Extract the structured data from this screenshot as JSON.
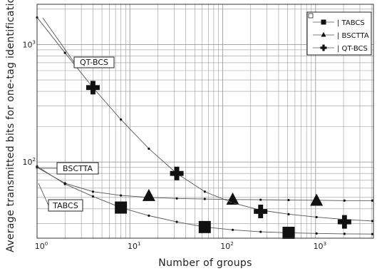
{
  "chart_data": {
    "type": "line",
    "xlabel": "Number of groups",
    "ylabel": "Average transmitted bits for one-tag identification",
    "x_scale": "log",
    "y_scale": "log",
    "xlim": [
      1,
      4200
    ],
    "ylim": [
      22.5,
      2200
    ],
    "x_ticks": [
      {
        "value": 1,
        "base": "10",
        "exp": "0"
      },
      {
        "value": 10,
        "base": "10",
        "exp": "1"
      },
      {
        "value": 100,
        "base": "10",
        "exp": "2"
      },
      {
        "value": 1000,
        "base": "10",
        "exp": "3"
      }
    ],
    "y_ticks": [
      {
        "value": 100,
        "base": "10",
        "exp": "2"
      },
      {
        "value": 1000,
        "base": "10",
        "exp": "3"
      }
    ],
    "grid": true,
    "legend_position": "top-right",
    "colors": {
      "line": "#555555",
      "marker": "#111111",
      "grid": "#9a9a9a",
      "frame": "#333333"
    },
    "series": [
      {
        "name": "| TABCS",
        "marker": "square",
        "x": [
          1,
          2,
          4,
          8,
          16,
          32,
          64,
          128,
          256,
          512,
          1024,
          2048,
          4096
        ],
        "y": [
          92,
          65,
          51,
          41,
          35,
          31,
          28,
          26.5,
          25.5,
          25,
          24.7,
          24.5,
          24.4
        ],
        "big_markers": {
          "x": [
            8,
            64,
            512
          ],
          "y": [
            41,
            28,
            25
          ]
        }
      },
      {
        "name": "| BSCTTA",
        "marker": "triangle",
        "x": [
          1,
          2,
          4,
          8,
          16,
          32,
          64,
          128,
          256,
          512,
          1024,
          2048,
          4096
        ],
        "y": [
          90,
          66,
          56,
          52,
          50,
          49,
          48.5,
          48,
          47.8,
          47.5,
          47.3,
          47,
          47
        ],
        "big_markers": {
          "x": [
            16,
            128,
            1024
          ],
          "y": [
            51,
            47.5,
            46.5
          ]
        }
      },
      {
        "name": "| QT-BCS",
        "marker": "plus",
        "x": [
          1,
          2,
          4,
          8,
          16,
          32,
          64,
          128,
          256,
          512,
          1024,
          2048,
          4096
        ],
        "y": [
          1700,
          850,
          430,
          230,
          130,
          80,
          56,
          45,
          39,
          36,
          34,
          32.5,
          31.5
        ],
        "big_markers": {
          "x": [
            4,
            32,
            256,
            2048
          ],
          "y": [
            430,
            80,
            38,
            31
          ]
        }
      }
    ],
    "annotations": [
      {
        "text": "QT-BCS",
        "series": "QT-BCS"
      },
      {
        "text": "BSCTTA",
        "series": "BSCTTA"
      },
      {
        "text": "TABCS",
        "series": "TABCS"
      }
    ]
  }
}
